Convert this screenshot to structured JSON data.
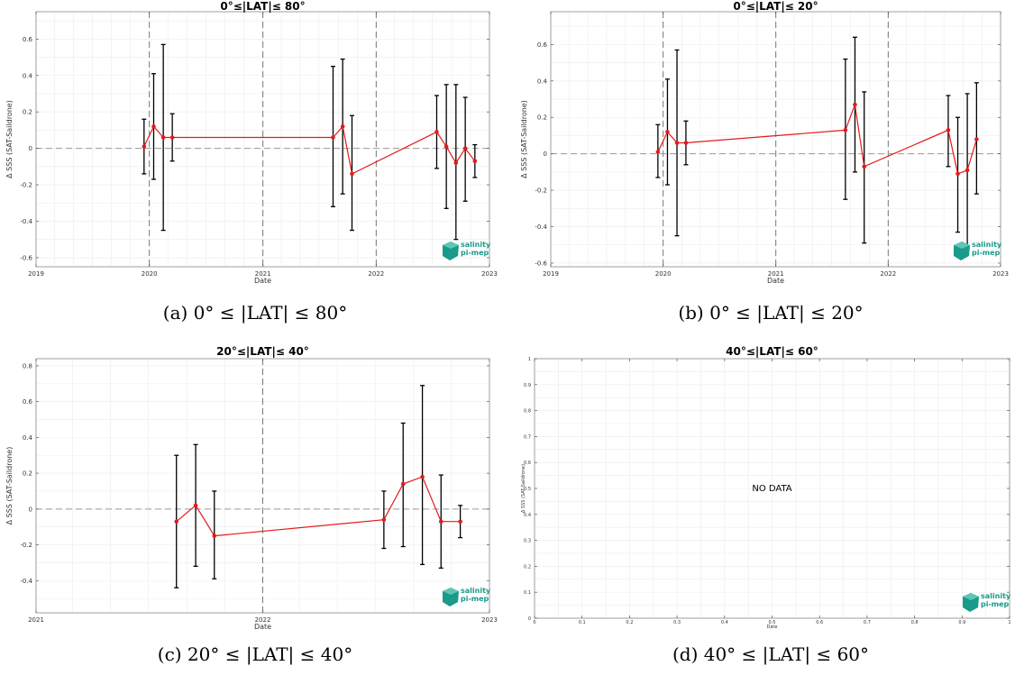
{
  "colors": {
    "series": "#e31a1c",
    "errorbar": "#000000",
    "zero_line": "#999999",
    "year_line": "#777777",
    "logo": "#1a9a8a"
  },
  "logo": {
    "line1": "salinity",
    "line2": "pi-mep"
  },
  "chart_data": [
    {
      "type": "line",
      "title": "0°≤|LAT|≤ 80°",
      "caption": "(a) 0° ≤ |LAT| ≤ 80°",
      "xlabel": "Date",
      "ylabel": "Δ SSS (SAT-Saildrone)",
      "x_axis": "date",
      "xlim": [
        "2019-01-01",
        "2023-01-01"
      ],
      "ylim": [
        -0.65,
        0.75
      ],
      "xticks": [
        "2019",
        "2020",
        "2021",
        "2022",
        "2023"
      ],
      "yticks": [
        -0.6,
        -0.4,
        -0.2,
        0,
        0.2,
        0.4,
        0.6
      ],
      "ytick_labels": [
        "-0.6",
        "-0.4",
        "-0.2",
        "0",
        "0.2",
        "0.4",
        "0.6"
      ],
      "grid": true,
      "year_lines": [
        "2020-01-01",
        "2021-01-01",
        "2022-01-01"
      ],
      "zero_line": true,
      "points": [
        {
          "x": "2019-12-15",
          "y": 0.01,
          "lo": -0.14,
          "hi": 0.16
        },
        {
          "x": "2020-01-15",
          "y": 0.12,
          "lo": -0.17,
          "hi": 0.41
        },
        {
          "x": "2020-02-15",
          "y": 0.06,
          "lo": -0.45,
          "hi": 0.57
        },
        {
          "x": "2020-03-15",
          "y": 0.06,
          "lo": -0.07,
          "hi": 0.19
        },
        {
          "x": "2021-08-15",
          "y": 0.06,
          "lo": -0.32,
          "hi": 0.45
        },
        {
          "x": "2021-09-15",
          "y": 0.12,
          "lo": -0.25,
          "hi": 0.49
        },
        {
          "x": "2021-10-15",
          "y": -0.14,
          "lo": -0.45,
          "hi": 0.18
        },
        {
          "x": "2022-07-15",
          "y": 0.09,
          "lo": -0.11,
          "hi": 0.29
        },
        {
          "x": "2022-08-15",
          "y": 0.01,
          "lo": -0.33,
          "hi": 0.35
        },
        {
          "x": "2022-09-15",
          "y": -0.08,
          "lo": -0.5,
          "hi": 0.35
        },
        {
          "x": "2022-10-15",
          "y": 0.0,
          "lo": -0.29,
          "hi": 0.28
        },
        {
          "x": "2022-11-15",
          "y": -0.07,
          "lo": -0.16,
          "hi": 0.02
        }
      ]
    },
    {
      "type": "line",
      "title": "0°≤|LAT|≤ 20°",
      "caption": "(b) 0° ≤ |LAT| ≤ 20°",
      "xlabel": "Date",
      "ylabel": "Δ SSS (SAT-Saildrone)",
      "x_axis": "date",
      "xlim": [
        "2019-01-01",
        "2023-01-01"
      ],
      "ylim": [
        -0.62,
        0.78
      ],
      "xticks": [
        "2019",
        "2020",
        "2021",
        "2022",
        "2023"
      ],
      "yticks": [
        -0.6,
        -0.4,
        -0.2,
        0,
        0.2,
        0.4,
        0.6
      ],
      "ytick_labels": [
        "-0.6",
        "-0.4",
        "-0.2",
        "0",
        "0.2",
        "0.4",
        "0.6"
      ],
      "grid": true,
      "year_lines": [
        "2020-01-01",
        "2021-01-01",
        "2022-01-01"
      ],
      "zero_line": true,
      "points": [
        {
          "x": "2019-12-15",
          "y": 0.01,
          "lo": -0.13,
          "hi": 0.16
        },
        {
          "x": "2020-01-15",
          "y": 0.12,
          "lo": -0.17,
          "hi": 0.41
        },
        {
          "x": "2020-02-15",
          "y": 0.06,
          "lo": -0.45,
          "hi": 0.57
        },
        {
          "x": "2020-03-15",
          "y": 0.06,
          "lo": -0.06,
          "hi": 0.18
        },
        {
          "x": "2021-08-15",
          "y": 0.13,
          "lo": -0.25,
          "hi": 0.52
        },
        {
          "x": "2021-09-15",
          "y": 0.27,
          "lo": -0.1,
          "hi": 0.64
        },
        {
          "x": "2021-10-15",
          "y": -0.07,
          "lo": -0.49,
          "hi": 0.34
        },
        {
          "x": "2022-07-15",
          "y": 0.13,
          "lo": -0.07,
          "hi": 0.32
        },
        {
          "x": "2022-08-15",
          "y": -0.11,
          "lo": -0.43,
          "hi": 0.2
        },
        {
          "x": "2022-09-15",
          "y": -0.09,
          "lo": -0.52,
          "hi": 0.33
        },
        {
          "x": "2022-10-15",
          "y": 0.08,
          "lo": -0.22,
          "hi": 0.39
        }
      ]
    },
    {
      "type": "line",
      "title": "20°≤|LAT|≤ 40°",
      "caption": "(c) 20° ≤ |LAT| ≤ 40°",
      "xlabel": "Date",
      "ylabel": "Δ SSS (SAT-Saildrone)",
      "x_axis": "date",
      "xlim": [
        "2021-01-01",
        "2023-01-01"
      ],
      "ylim": [
        -0.58,
        0.84
      ],
      "xticks": [
        "2021",
        "2022",
        "2023"
      ],
      "yticks": [
        -0.4,
        -0.2,
        0,
        0.2,
        0.4,
        0.6,
        0.8
      ],
      "ytick_labels": [
        "-0.4",
        "-0.2",
        "0",
        "0.2",
        "0.4",
        "0.6",
        "0.8"
      ],
      "grid": true,
      "year_lines": [
        "2022-01-01"
      ],
      "zero_line": true,
      "points": [
        {
          "x": "2021-08-15",
          "y": -0.07,
          "lo": -0.44,
          "hi": 0.3
        },
        {
          "x": "2021-09-15",
          "y": 0.02,
          "lo": -0.32,
          "hi": 0.36
        },
        {
          "x": "2021-10-15",
          "y": -0.15,
          "lo": -0.39,
          "hi": 0.1
        },
        {
          "x": "2022-07-15",
          "y": -0.06,
          "lo": -0.22,
          "hi": 0.1
        },
        {
          "x": "2022-08-15",
          "y": 0.14,
          "lo": -0.21,
          "hi": 0.48
        },
        {
          "x": "2022-09-15",
          "y": 0.18,
          "lo": -0.31,
          "hi": 0.69
        },
        {
          "x": "2022-10-15",
          "y": -0.07,
          "lo": -0.33,
          "hi": 0.19
        },
        {
          "x": "2022-11-15",
          "y": -0.07,
          "lo": -0.16,
          "hi": 0.02
        }
      ]
    },
    {
      "type": "line",
      "title": "40°≤|LAT|≤ 60°",
      "caption": "(d) 40° ≤ |LAT| ≤ 60°",
      "xlabel": "Date",
      "ylabel": "Δ SSS (SAT-Saildrone)",
      "x_axis": "linear",
      "xlim": [
        0,
        1
      ],
      "ylim": [
        0,
        1
      ],
      "xticks": [
        0,
        0.1,
        0.2,
        0.3,
        0.4,
        0.5,
        0.6,
        0.7,
        0.8,
        0.9,
        1
      ],
      "xtick_labels": [
        "0",
        "0.1",
        "0.2",
        "0.3",
        "0.4",
        "0.5",
        "0.6",
        "0.7",
        "0.8",
        "0.9",
        "1"
      ],
      "yticks": [
        0,
        0.1,
        0.2,
        0.3,
        0.4,
        0.5,
        0.6,
        0.7,
        0.8,
        0.9,
        1
      ],
      "ytick_labels": [
        "0",
        "0.1",
        "0.2",
        "0.3",
        "0.4",
        "0.5",
        "0.6",
        "0.7",
        "0.8",
        "0.9",
        "1"
      ],
      "grid": true,
      "year_lines": [],
      "zero_line": false,
      "no_data_text": "NO DATA",
      "points": []
    }
  ]
}
